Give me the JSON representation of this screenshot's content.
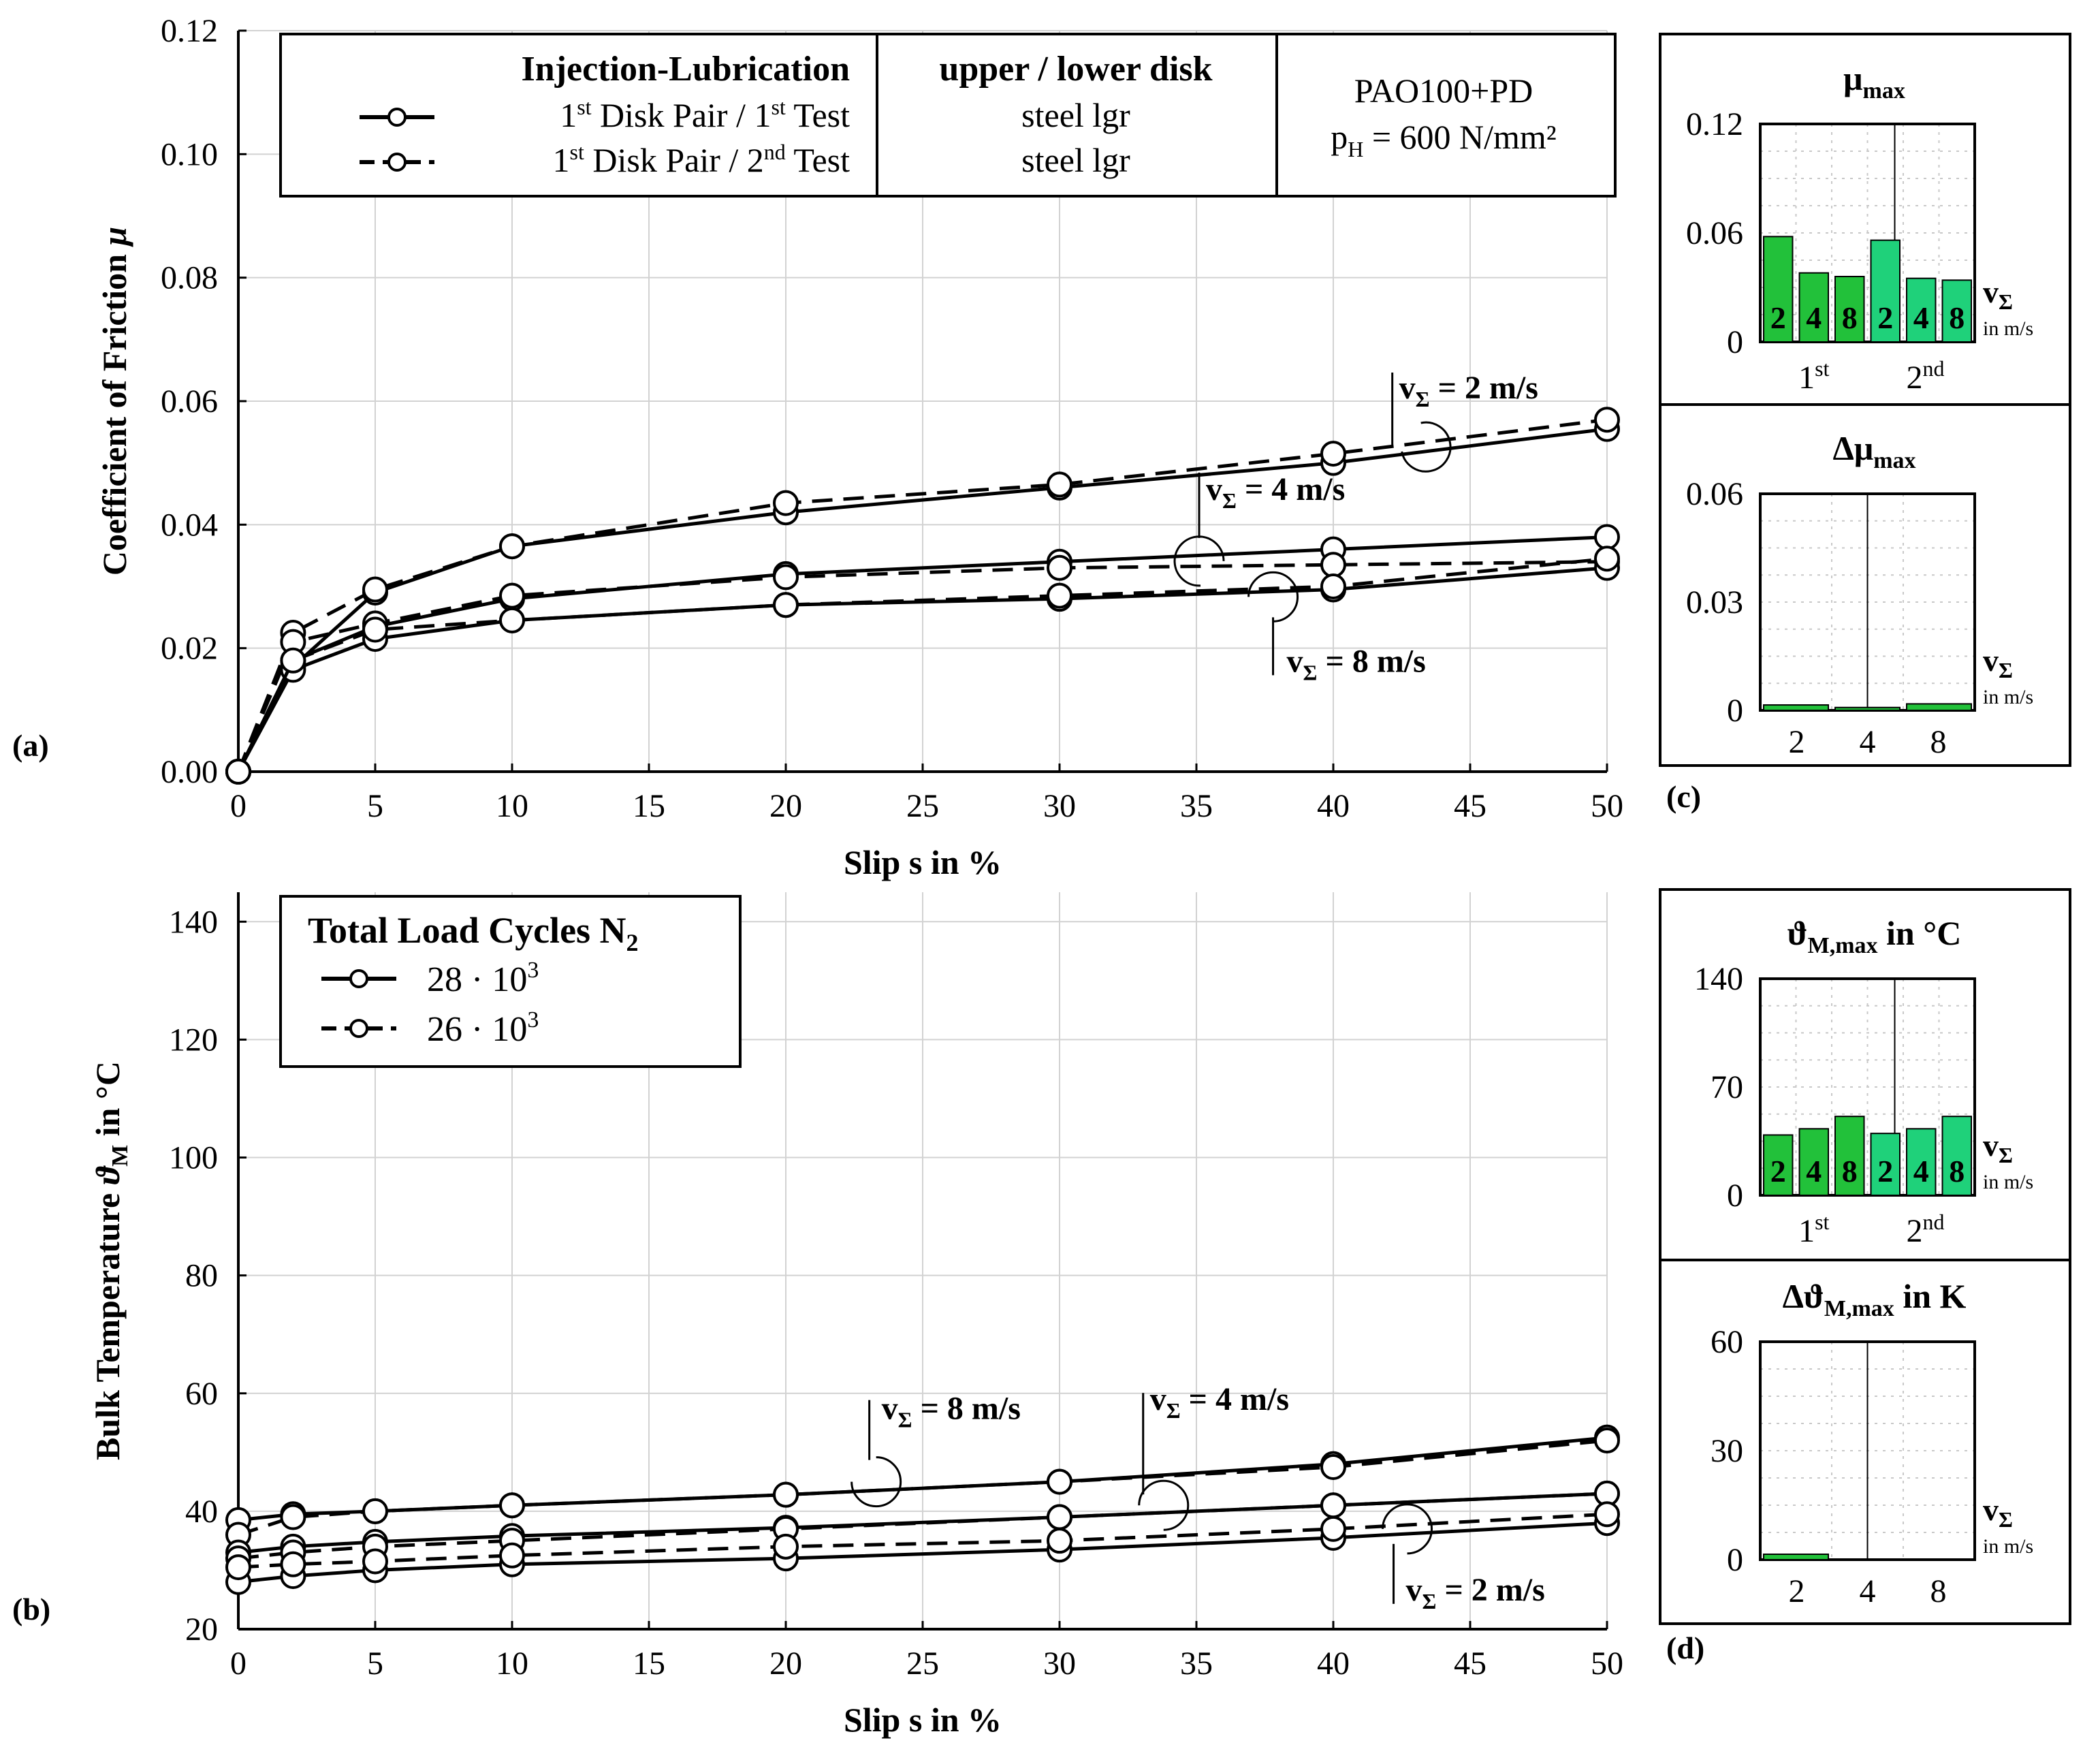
{
  "chart_data": [
    {
      "panel": "(a)",
      "type": "line",
      "xlabel": "Slip s in %",
      "ylabel": "Coefficient of Friction μ",
      "ylabel_main": "Coefficient of Friction",
      "ylabel_sym": "μ",
      "x": [
        0,
        2,
        5,
        10,
        20,
        30,
        40,
        50
      ],
      "xticks": [
        0,
        5,
        10,
        15,
        20,
        25,
        30,
        35,
        40,
        45,
        50
      ],
      "yticks": [
        0.0,
        0.02,
        0.04,
        0.06,
        0.08,
        0.1,
        0.12
      ],
      "xlim": [
        0,
        50
      ],
      "ylim": [
        0,
        0.12
      ],
      "grid": true,
      "series": [
        {
          "group": "2 m/s",
          "style": "solid",
          "values": [
            0.0,
            0.017,
            0.029,
            0.0365,
            0.042,
            0.046,
            0.05,
            0.0555
          ]
        },
        {
          "group": "2 m/s",
          "style": "dashed",
          "values": [
            0.0,
            0.0225,
            0.0295,
            0.0365,
            0.0435,
            0.0465,
            0.0515,
            0.057
          ]
        },
        {
          "group": "4 m/s",
          "style": "solid",
          "values": [
            0.0,
            0.018,
            0.0235,
            0.028,
            0.032,
            0.034,
            0.036,
            0.038
          ]
        },
        {
          "group": "4 m/s",
          "style": "dashed",
          "values": [
            0.0,
            0.021,
            0.024,
            0.0285,
            0.0315,
            0.033,
            0.0335,
            0.034
          ]
        },
        {
          "group": "8 m/s",
          "style": "solid",
          "values": [
            0.0,
            0.0165,
            0.0215,
            0.0245,
            0.027,
            0.028,
            0.0295,
            0.033
          ]
        },
        {
          "group": "8 m/s",
          "style": "dashed",
          "values": [
            0.0,
            0.018,
            0.023,
            0.0245,
            0.027,
            0.0285,
            0.03,
            0.0345
          ]
        }
      ],
      "annotations": [
        {
          "label": "v",
          "sub": "Σ",
          "value": " = 2 m/s"
        },
        {
          "label": "v",
          "sub": "Σ",
          "value": " = 4 m/s"
        },
        {
          "label": "v",
          "sub": "Σ",
          "value": " = 8 m/s"
        }
      ],
      "legend": {
        "placement": "top",
        "col1_title": "Injection-Lubrication",
        "entry1": {
          "pre": "1",
          "sup1": "st",
          "mid": " Disk Pair / 1",
          "sup2": "st",
          "post": " Test"
        },
        "entry2": {
          "pre": "1",
          "sup1": "st",
          "mid": " Disk Pair / 2",
          "sup2": "nd",
          "post": " Test"
        },
        "col2_title": "upper / lower disk",
        "col2_line1": "steel lgr",
        "col2_line2": "steel lgr",
        "col3_line1": "PAO100+PD",
        "col3_p": "p",
        "col3_sub": "H",
        "col3_rest": " = 600 N/mm²"
      }
    },
    {
      "panel": "(b)",
      "type": "line",
      "xlabel": "Slip s in %",
      "ylabel_main": "Bulk Temperature",
      "ylabel_sym": "ϑ",
      "ylabel_sub": "M",
      "ylabel_unit": " in °C",
      "x": [
        0,
        2,
        5,
        10,
        20,
        30,
        40,
        50
      ],
      "xticks": [
        0,
        5,
        10,
        15,
        20,
        25,
        30,
        35,
        40,
        45,
        50
      ],
      "yticks": [
        20,
        40,
        60,
        80,
        100,
        120,
        140
      ],
      "xlim": [
        0,
        50
      ],
      "ylim": [
        20,
        145
      ],
      "grid": true,
      "series": [
        {
          "group": "8 m/s",
          "style": "solid",
          "values": [
            38.5,
            39.5,
            40.0,
            41.0,
            42.8,
            45.0,
            48.0,
            52.5
          ]
        },
        {
          "group": "8 m/s",
          "style": "dashed",
          "values": [
            36.0,
            39.0,
            40.0,
            41.0,
            42.8,
            45.0,
            47.5,
            52.0
          ]
        },
        {
          "group": "4 m/s",
          "style": "solid",
          "values": [
            33.0,
            34.0,
            34.8,
            35.8,
            37.2,
            39.0,
            41.0,
            43.0
          ]
        },
        {
          "group": "4 m/s",
          "style": "dashed",
          "values": [
            32.0,
            33.0,
            34.0,
            35.0,
            37.0,
            39.0,
            41.0,
            43.0
          ]
        },
        {
          "group": "2 m/s",
          "style": "solid",
          "values": [
            28.0,
            29.0,
            30.0,
            31.0,
            32.0,
            33.5,
            35.5,
            38.0
          ]
        },
        {
          "group": "2 m/s",
          "style": "dashed",
          "values": [
            30.5,
            31.0,
            31.5,
            32.5,
            34.0,
            35.0,
            37.0,
            39.5
          ]
        }
      ],
      "annotations": [
        {
          "label": "v",
          "sub": "Σ",
          "value": " = 8 m/s"
        },
        {
          "label": "v",
          "sub": "Σ",
          "value": " = 4 m/s"
        },
        {
          "label": "v",
          "sub": "Σ",
          "value": " = 2 m/s"
        }
      ],
      "legend": {
        "placement": "top-left",
        "title": "Total Load Cycles N",
        "title_sub": "2",
        "entry1": "28 · 10",
        "entry1_sup": "3",
        "entry2": "26 · 10",
        "entry2_sup": "3"
      }
    },
    {
      "panel": "(c) top",
      "type": "bar",
      "title": "μ",
      "title_sub": "max",
      "categories": [
        "2",
        "4",
        "8",
        "2",
        "4",
        "8"
      ],
      "groups": [
        {
          "label": "1",
          "sup": "st"
        },
        {
          "label": "2",
          "sup": "nd"
        }
      ],
      "values": [
        0.058,
        0.038,
        0.036,
        0.056,
        0.035,
        0.034
      ],
      "yticks": [
        "0",
        "0.06",
        "0.12"
      ],
      "ylim": [
        0,
        0.12
      ],
      "colors": [
        "#22c13a",
        "#22c13a",
        "#22c13a",
        "#1fd17a",
        "#1fd17a",
        "#1fd17a"
      ],
      "unit_label": "v",
      "unit_sub": "Σ",
      "unit_line2": "in m/s"
    },
    {
      "panel": "(c) bottom",
      "type": "bar",
      "title": "Δμ",
      "title_sub": "max",
      "categories": [
        "2",
        "4",
        "8"
      ],
      "values": [
        0.0015,
        0.0008,
        0.0018
      ],
      "yticks": [
        "0",
        "0.03",
        "0.06"
      ],
      "ylim": [
        0,
        0.06
      ],
      "colors": [
        "#22c13a",
        "#22c13a",
        "#22c13a"
      ],
      "unit_label": "v",
      "unit_sub": "Σ",
      "unit_line2": "in m/s"
    },
    {
      "panel": "(d) top",
      "type": "bar",
      "title": "ϑ",
      "title_sub": "M,max",
      "title_rest": " in °C",
      "categories": [
        "2",
        "4",
        "8",
        "2",
        "4",
        "8"
      ],
      "groups": [
        {
          "label": "1",
          "sup": "st"
        },
        {
          "label": "2",
          "sup": "nd"
        }
      ],
      "values": [
        39,
        43,
        51,
        40,
        43,
        51
      ],
      "yticks": [
        "0",
        "70",
        "140"
      ],
      "ylim": [
        0,
        140
      ],
      "colors": [
        "#22c13a",
        "#22c13a",
        "#22c13a",
        "#1fd17a",
        "#1fd17a",
        "#1fd17a"
      ],
      "unit_label": "v",
      "unit_sub": "Σ",
      "unit_line2": "in m/s"
    },
    {
      "panel": "(d) bottom",
      "type": "bar",
      "title": "Δϑ",
      "title_sub": "M,max",
      "title_rest": " in K",
      "categories": [
        "2",
        "4",
        "8"
      ],
      "values": [
        1.5,
        0,
        0
      ],
      "yticks": [
        "0",
        "30",
        "60"
      ],
      "ylim": [
        0,
        60
      ],
      "colors": [
        "#22c13a",
        "#22c13a",
        "#22c13a"
      ],
      "unit_label": "v",
      "unit_sub": "Σ",
      "unit_line2": "in m/s"
    }
  ],
  "panel_labels": {
    "a": "(a)",
    "b": "(b)",
    "c": "(c)",
    "d": "(d)"
  }
}
